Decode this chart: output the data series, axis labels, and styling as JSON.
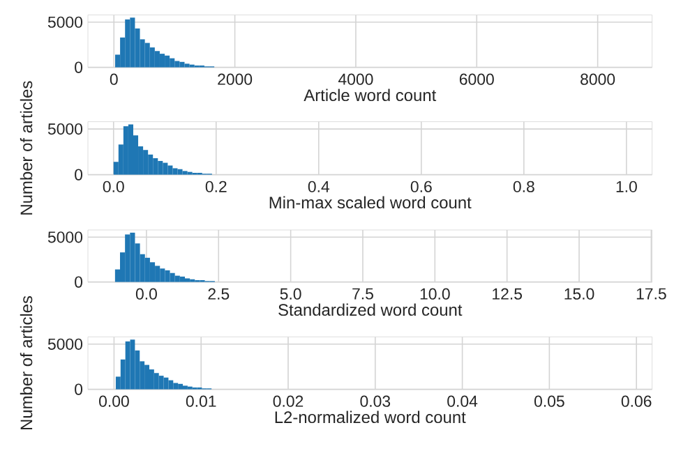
{
  "chart_data": [
    {
      "type": "histogram",
      "color": "#1f77b4",
      "xlabel": "Article word count",
      "grid": true,
      "bins": [
        20,
        102,
        184,
        266,
        348,
        430,
        512,
        594,
        676,
        758,
        840,
        922,
        1004,
        1086,
        1168,
        1250,
        1332,
        1414,
        1496,
        1578,
        1660
      ],
      "values": [
        1400,
        3300,
        5300,
        5500,
        4300,
        3100,
        2700,
        2200,
        1800,
        1500,
        1300,
        1000,
        700,
        600,
        400,
        300,
        200,
        200,
        100,
        100
      ],
      "xlim": [
        -430,
        8900
      ],
      "xticks": [
        0,
        2000,
        4000,
        6000,
        8000
      ],
      "ylim": [
        0,
        5800
      ],
      "yticks": [
        0,
        5000
      ]
    },
    {
      "type": "histogram",
      "color": "#1f77b4",
      "xlabel": "Min-max scaled word count",
      "ylabel": "Number of articles",
      "grid": true,
      "bins": [
        0,
        0.0096,
        0.0192,
        0.0288,
        0.0384,
        0.048,
        0.0576,
        0.0672,
        0.0768,
        0.0864,
        0.096,
        0.1056,
        0.1152,
        0.1248,
        0.1344,
        0.144,
        0.1536,
        0.1632,
        0.1728,
        0.1824,
        0.192
      ],
      "values": [
        1400,
        3300,
        5300,
        5500,
        4300,
        3100,
        2700,
        2200,
        1800,
        1500,
        1300,
        1000,
        700,
        600,
        400,
        300,
        200,
        200,
        100,
        100
      ],
      "xlim": [
        -0.05,
        1.05
      ],
      "xticks": [
        {
          "value": 0,
          "label": "0.0"
        },
        0.2,
        0.4,
        0.6,
        0.8,
        {
          "value": 1,
          "label": "1.0"
        }
      ],
      "ylim": [
        0,
        5800
      ],
      "yticks": [
        0,
        5000
      ]
    },
    {
      "type": "histogram",
      "color": "#1f77b4",
      "xlabel": "Standardized word count",
      "grid": true,
      "bins": [
        -1.09,
        -0.917,
        -0.744,
        -0.571,
        -0.398,
        -0.225,
        -0.052,
        0.121,
        0.294,
        0.467,
        0.64,
        0.813,
        0.986,
        1.159,
        1.332,
        1.505,
        1.678,
        1.851,
        2.024,
        2.197,
        2.37
      ],
      "values": [
        1400,
        3300,
        5300,
        5500,
        4300,
        3100,
        2700,
        2200,
        1800,
        1500,
        1300,
        1000,
        700,
        600,
        400,
        300,
        200,
        200,
        100,
        100
      ],
      "xlim": [
        -2.03,
        17.53
      ],
      "xticks": [
        {
          "value": 0,
          "label": "0.0"
        },
        2.5,
        {
          "value": 5,
          "label": "5.0"
        },
        7.5,
        {
          "value": 10,
          "label": "10.0"
        },
        12.5,
        {
          "value": 15,
          "label": "15.0"
        },
        17.5
      ],
      "ylim": [
        0,
        5800
      ],
      "yticks": [
        0,
        5000
      ]
    },
    {
      "type": "histogram",
      "color": "#1f77b4",
      "xlabel": "L2-normalized word count",
      "ylabel": "Number of articles",
      "grid": true,
      "bins": [
        0.0002,
        0.00075,
        0.0013,
        0.00185,
        0.0024,
        0.00295,
        0.0035,
        0.00405,
        0.0046,
        0.00515,
        0.0057,
        0.00625,
        0.0068,
        0.00735,
        0.0079,
        0.00845,
        0.009,
        0.00955,
        0.0101,
        0.01065,
        0.0112
      ],
      "values": [
        1400,
        3300,
        5300,
        5500,
        4300,
        3100,
        2700,
        2200,
        1800,
        1500,
        1300,
        1000,
        700,
        600,
        400,
        300,
        200,
        200,
        100,
        100
      ],
      "xlim": [
        -0.003,
        0.0618
      ],
      "xticks": [
        {
          "value": 0,
          "label": "0.00"
        },
        0.01,
        0.02,
        0.03,
        0.04,
        0.05,
        0.06
      ],
      "ylim": [
        0,
        5800
      ],
      "yticks": [
        0,
        5000
      ]
    }
  ]
}
